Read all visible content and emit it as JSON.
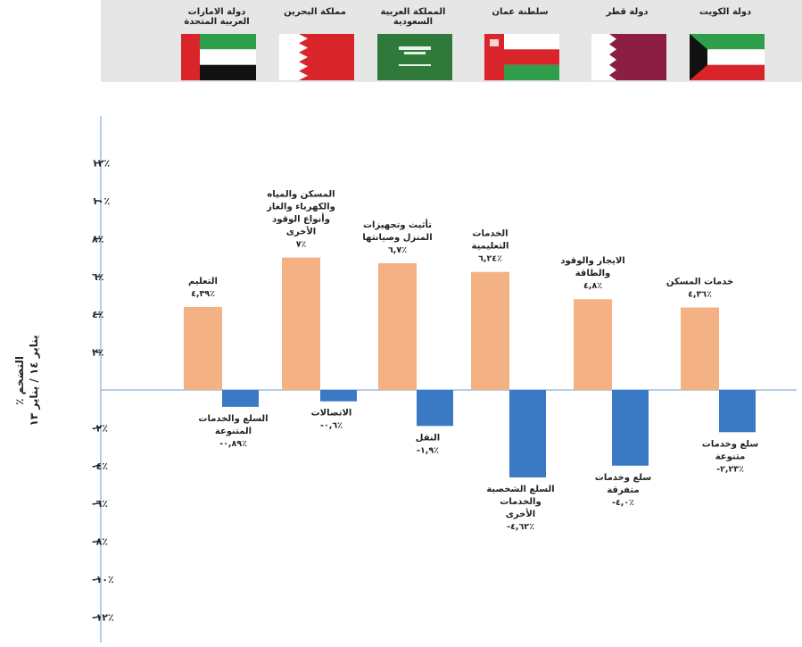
{
  "countries": [
    {
      "name": "دولة الكويت",
      "flag_icon": "kuwait-flag-icon"
    },
    {
      "name": "دولة قطر",
      "flag_icon": "qatar-flag-icon"
    },
    {
      "name": "سلطنة عمان",
      "flag_icon": "oman-flag-icon"
    },
    {
      "name": "المملكة العربية السعودية",
      "flag_icon": "saudi-flag-icon"
    },
    {
      "name": "مملكة البحرين",
      "flag_icon": "bahrain-flag-icon"
    },
    {
      "name": "دولة الامارات العربية المتحدة",
      "flag_icon": "uae-flag-icon"
    }
  ],
  "colors": {
    "positive": "#f4b183",
    "negative": "#3a79c4",
    "axis": "#9bbde4",
    "text": "#222222",
    "band": "#e6e6e6"
  },
  "chart_data": {
    "type": "bar",
    "ylabel": [
      "التضخم ٪",
      "يناير ١٤ / يناير ١٣"
    ],
    "ylim": [
      -12,
      12
    ],
    "yticks": [
      {
        "value": 12,
        "label": "٪١٢"
      },
      {
        "value": 10,
        "label": "٪١٠"
      },
      {
        "value": 8,
        "label": "٪٨"
      },
      {
        "value": 6,
        "label": "٪٦"
      },
      {
        "value": 4,
        "label": "٪٤"
      },
      {
        "value": 2,
        "label": "٪٢"
      },
      {
        "value": -2,
        "label": "٪٢-"
      },
      {
        "value": -4,
        "label": "٪٤-"
      },
      {
        "value": -6,
        "label": "٪٦-"
      },
      {
        "value": -8,
        "label": "٪٨-"
      },
      {
        "value": -10,
        "label": "٪١٠-"
      },
      {
        "value": -12,
        "label": "٪١٢-"
      }
    ],
    "groups": [
      {
        "country": "دولة الامارات العربية المتحدة",
        "highest": {
          "label": "التعليم",
          "value": 4.39,
          "value_label": "٪٤,٣٩"
        },
        "lowest": {
          "label": "السلع والخدمات المتنوعة",
          "value": -0.89,
          "value_label": "٪٠,٨٩-"
        }
      },
      {
        "country": "مملكة البحرين",
        "highest": {
          "label": "المسكن والمياه والكهرباء والغاز وأنواع الوقود الأخرى",
          "value": 7,
          "value_label": "٪٧"
        },
        "lowest": {
          "label": "الاتصالات",
          "value": -0.6,
          "value_label": "٪٠,٦-"
        }
      },
      {
        "country": "المملكة العربية السعودية",
        "highest": {
          "label": "تأثيث وتجهيزات المنزل وصيانتها",
          "value": 6.7,
          "value_label": "٪٦,٧"
        },
        "lowest": {
          "label": "النقل",
          "value": -1.9,
          "value_label": "٪١,٩-"
        }
      },
      {
        "country": "سلطنة عمان",
        "highest": {
          "label": "الخدمات التعليمية",
          "value": 6.24,
          "value_label": "٪٦,٢٤"
        },
        "lowest": {
          "label": "السلع الشخصية والخدمات الأخرى",
          "value": -4.62,
          "value_label": "٪٤,٦٢-"
        }
      },
      {
        "country": "دولة قطر",
        "highest": {
          "label": "الايجار والوقود والطاقة",
          "value": 4.8,
          "value_label": "٪٤,٨"
        },
        "lowest": {
          "label": "سلع وخدمات متفرقة",
          "value": -4.0,
          "value_label": "٪٤,٠-"
        }
      },
      {
        "country": "دولة الكويت",
        "highest": {
          "label": "خدمات المسكن",
          "value": 4.36,
          "value_label": "٪٤,٣٦"
        },
        "lowest": {
          "label": "سلع وخدمات متنوعة",
          "value": -2.23,
          "value_label": "٪٢,٢٣-"
        }
      }
    ]
  }
}
